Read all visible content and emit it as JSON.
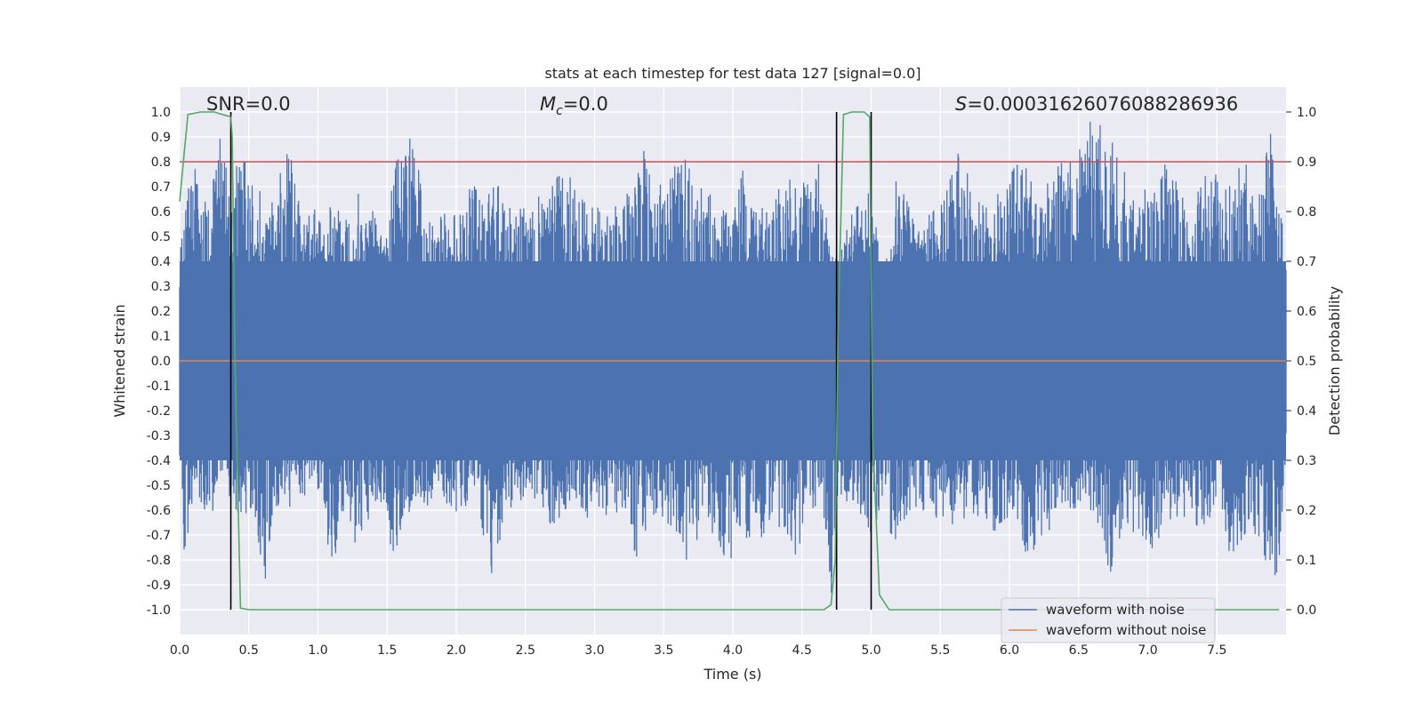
{
  "chart_data": {
    "type": "line",
    "title": "stats at each timestep for test data 127 [signal=0.0]",
    "xlabel": "Time (s)",
    "ylabel_left": "Whitened strain",
    "ylabel_right": "Detection probability",
    "xlim": [
      0.0,
      8.0
    ],
    "ylim_left": [
      -1.1,
      1.1
    ],
    "ylim_right": [
      -0.05,
      1.05
    ],
    "x_ticks": [
      "0.0",
      "0.5",
      "1.0",
      "1.5",
      "2.0",
      "2.5",
      "3.0",
      "3.5",
      "4.0",
      "4.5",
      "5.0",
      "5.5",
      "6.0",
      "6.5",
      "7.0",
      "7.5"
    ],
    "x_tick_values": [
      0.0,
      0.5,
      1.0,
      1.5,
      2.0,
      2.5,
      3.0,
      3.5,
      4.0,
      4.5,
      5.0,
      5.5,
      6.0,
      6.5,
      7.0,
      7.5
    ],
    "y_ticks_left": [
      "1.0",
      "0.9",
      "0.8",
      "0.7",
      "0.6",
      "0.5",
      "0.4",
      "0.3",
      "0.2",
      "0.1",
      "0.0",
      "-0.1",
      "-0.2",
      "-0.3",
      "-0.4",
      "-0.5",
      "-0.6",
      "-0.7",
      "-0.8",
      "-0.9",
      "-1.0"
    ],
    "y_tick_values_left": [
      1.0,
      0.9,
      0.8,
      0.7,
      0.6,
      0.5,
      0.4,
      0.3,
      0.2,
      0.1,
      0.0,
      -0.1,
      -0.2,
      -0.3,
      -0.4,
      -0.5,
      -0.6,
      -0.7,
      -0.8,
      -0.9,
      -1.0
    ],
    "y_ticks_right": [
      "1.0",
      "0.9",
      "0.8",
      "0.7",
      "0.6",
      "0.5",
      "0.4",
      "0.3",
      "0.2",
      "0.1",
      "0.0"
    ],
    "y_tick_values_right": [
      1.0,
      0.9,
      0.8,
      0.7,
      0.6,
      0.5,
      0.4,
      0.3,
      0.2,
      0.1,
      0.0
    ],
    "grid": true,
    "annotations": {
      "snr": "SNR=0.0",
      "mc_symbol": "M",
      "mc_sub": "c",
      "mc_value": "=0.0",
      "s_symbol": "S",
      "s_value": "=0.0003162607608828693​6"
    },
    "series": [
      {
        "name": "waveform with noise",
        "color": "#4c72b0",
        "axis": "left",
        "envelope_top": [
          [
            0.0,
            0.42
          ],
          [
            0.1,
            0.9
          ],
          [
            0.2,
            0.62
          ],
          [
            0.3,
            0.95
          ],
          [
            0.35,
            0.75
          ],
          [
            0.45,
            0.82
          ],
          [
            0.55,
            0.78
          ],
          [
            0.6,
            0.62
          ],
          [
            0.65,
            0.6
          ],
          [
            0.75,
            0.82
          ],
          [
            0.82,
            0.88
          ],
          [
            0.9,
            0.62
          ],
          [
            1.05,
            0.62
          ],
          [
            1.2,
            0.68
          ],
          [
            1.3,
            0.72
          ],
          [
            1.35,
            0.62
          ],
          [
            1.5,
            0.58
          ],
          [
            1.55,
            0.82
          ],
          [
            1.62,
            0.82
          ],
          [
            1.68,
            0.92
          ],
          [
            1.8,
            0.58
          ],
          [
            2.0,
            0.6
          ],
          [
            2.1,
            0.82
          ],
          [
            2.2,
            0.62
          ],
          [
            2.3,
            0.78
          ],
          [
            2.4,
            0.62
          ],
          [
            2.55,
            0.65
          ],
          [
            2.7,
            0.75
          ],
          [
            2.8,
            0.78
          ],
          [
            2.95,
            0.62
          ],
          [
            3.1,
            0.62
          ],
          [
            3.2,
            0.65
          ],
          [
            3.42,
            0.97
          ],
          [
            3.5,
            0.65
          ],
          [
            3.6,
            0.82
          ],
          [
            3.65,
            0.82
          ],
          [
            3.8,
            0.72
          ],
          [
            3.9,
            0.62
          ],
          [
            4.0,
            0.58
          ],
          [
            4.05,
            0.88
          ],
          [
            4.1,
            0.62
          ],
          [
            4.2,
            0.62
          ],
          [
            4.4,
            0.75
          ],
          [
            4.45,
            0.88
          ],
          [
            4.55,
            0.7
          ],
          [
            4.62,
            0.88
          ],
          [
            4.7,
            0.45
          ],
          [
            4.77,
            0.45
          ],
          [
            4.85,
            0.58
          ],
          [
            4.95,
            0.75
          ],
          [
            5.1,
            0.42
          ],
          [
            5.2,
            0.82
          ],
          [
            5.3,
            0.58
          ],
          [
            5.5,
            0.62
          ],
          [
            5.65,
            0.88
          ],
          [
            5.75,
            0.62
          ],
          [
            5.9,
            0.72
          ],
          [
            6.0,
            0.78
          ],
          [
            6.1,
            0.82
          ],
          [
            6.2,
            0.65
          ],
          [
            6.35,
            0.78
          ],
          [
            6.45,
            0.85
          ],
          [
            6.6,
            1.0
          ],
          [
            6.75,
            0.88
          ],
          [
            6.9,
            0.7
          ],
          [
            7.05,
            0.72
          ],
          [
            7.15,
            0.82
          ],
          [
            7.3,
            0.62
          ],
          [
            7.45,
            0.78
          ],
          [
            7.55,
            0.72
          ],
          [
            7.7,
            0.82
          ],
          [
            7.8,
            0.65
          ],
          [
            7.88,
            0.98
          ],
          [
            7.95,
            0.62
          ],
          [
            8.0,
            0.48
          ]
        ],
        "envelope_bottom": [
          [
            0.0,
            -0.4
          ],
          [
            0.03,
            -0.8
          ],
          [
            0.1,
            -0.55
          ],
          [
            0.18,
            -0.64
          ],
          [
            0.25,
            -0.6
          ],
          [
            0.3,
            -0.52
          ],
          [
            0.4,
            -0.66
          ],
          [
            0.45,
            -0.62
          ],
          [
            0.55,
            -0.64
          ],
          [
            0.62,
            -0.97
          ],
          [
            0.7,
            -0.62
          ],
          [
            0.85,
            -0.58
          ],
          [
            0.95,
            -0.52
          ],
          [
            1.05,
            -0.65
          ],
          [
            1.1,
            -0.93
          ],
          [
            1.2,
            -0.6
          ],
          [
            1.3,
            -0.82
          ],
          [
            1.4,
            -0.55
          ],
          [
            1.5,
            -0.7
          ],
          [
            1.55,
            -0.78
          ],
          [
            1.7,
            -0.55
          ],
          [
            1.85,
            -0.6
          ],
          [
            2.0,
            -0.62
          ],
          [
            2.15,
            -0.58
          ],
          [
            2.27,
            -0.9
          ],
          [
            2.35,
            -0.62
          ],
          [
            2.5,
            -0.55
          ],
          [
            2.6,
            -0.58
          ],
          [
            2.7,
            -0.68
          ],
          [
            2.85,
            -0.6
          ],
          [
            2.98,
            -0.65
          ],
          [
            3.1,
            -0.62
          ],
          [
            3.25,
            -0.6
          ],
          [
            3.3,
            -0.83
          ],
          [
            3.4,
            -0.62
          ],
          [
            3.5,
            -0.7
          ],
          [
            3.65,
            -0.82
          ],
          [
            3.7,
            -0.8
          ],
          [
            3.8,
            -0.62
          ],
          [
            3.95,
            -0.86
          ],
          [
            4.05,
            -0.72
          ],
          [
            4.15,
            -0.78
          ],
          [
            4.3,
            -0.62
          ],
          [
            4.45,
            -0.85
          ],
          [
            4.55,
            -0.6
          ],
          [
            4.65,
            -0.58
          ],
          [
            4.72,
            -0.98
          ],
          [
            4.78,
            -0.55
          ],
          [
            4.9,
            -0.6
          ],
          [
            5.0,
            -0.72
          ],
          [
            5.1,
            -0.55
          ],
          [
            5.15,
            -0.8
          ],
          [
            5.3,
            -0.58
          ],
          [
            5.45,
            -0.65
          ],
          [
            5.55,
            -0.72
          ],
          [
            5.7,
            -0.62
          ],
          [
            5.8,
            -0.68
          ],
          [
            5.95,
            -0.7
          ],
          [
            6.05,
            -0.62
          ],
          [
            6.15,
            -0.85
          ],
          [
            6.3,
            -0.68
          ],
          [
            6.45,
            -0.62
          ],
          [
            6.6,
            -0.6
          ],
          [
            6.72,
            -0.88
          ],
          [
            6.85,
            -0.65
          ],
          [
            7.0,
            -0.78
          ],
          [
            7.1,
            -0.7
          ],
          [
            7.25,
            -0.62
          ],
          [
            7.35,
            -0.75
          ],
          [
            7.5,
            -0.6
          ],
          [
            7.6,
            -0.8
          ],
          [
            7.75,
            -0.65
          ],
          [
            7.85,
            -0.85
          ],
          [
            7.9,
            -0.92
          ],
          [
            7.95,
            -0.82
          ],
          [
            8.0,
            -0.35
          ]
        ]
      },
      {
        "name": "waveform without noise",
        "color": "#dd8452",
        "axis": "left",
        "x": [
          0.0,
          8.0
        ],
        "y": [
          0.0,
          0.0
        ]
      },
      {
        "color": "#55a868",
        "axis": "right",
        "x": [
          0.0,
          0.03,
          0.06,
          0.15,
          0.25,
          0.37,
          0.38,
          0.4,
          0.44,
          0.5,
          4.66,
          4.71,
          4.74,
          4.76,
          4.8,
          4.86,
          4.95,
          4.99,
          5.01,
          5.06,
          5.13,
          7.95
        ],
        "y": [
          0.82,
          0.91,
          0.995,
          1.0,
          1.0,
          0.99,
          0.95,
          0.5,
          0.003,
          0.0,
          0.0,
          0.01,
          0.1,
          0.55,
          0.995,
          1.0,
          1.0,
          0.99,
          0.35,
          0.03,
          0.0,
          0.0
        ]
      }
    ],
    "hlines": [
      {
        "axis": "left",
        "y": 0.8,
        "color": "#c44e52"
      }
    ],
    "vlines": [
      {
        "x": 0.37,
        "ymin": -1.0,
        "ymax": 1.0,
        "color": "#000000"
      },
      {
        "x": 4.75,
        "ymin": -1.0,
        "ymax": 1.0,
        "color": "#000000"
      },
      {
        "x": 5.0,
        "ymin": -1.0,
        "ymax": 1.0,
        "color": "#000000"
      }
    ],
    "legend": {
      "placement": "lower-right",
      "entries": [
        "waveform with noise",
        "waveform without noise"
      ]
    }
  }
}
